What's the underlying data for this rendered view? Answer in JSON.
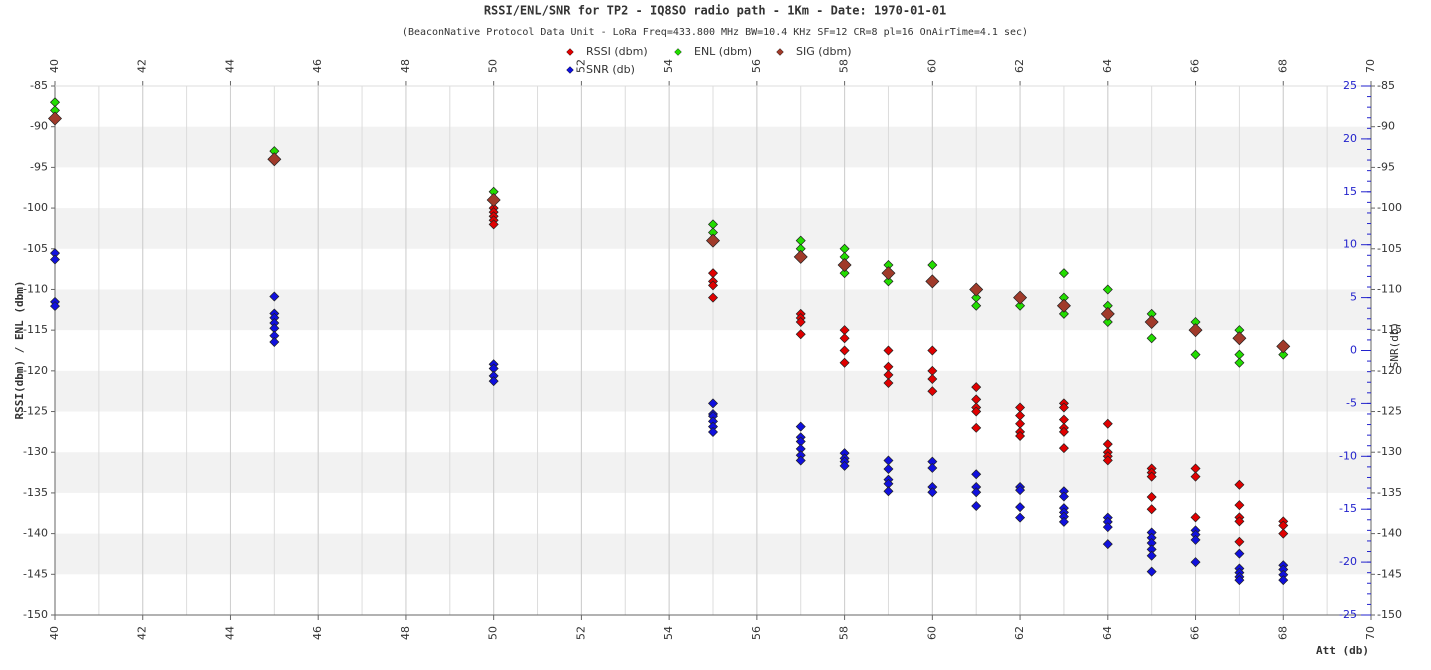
{
  "chart_data": {
    "type": "scatter",
    "title": "RSSI/ENL/SNR for TP2 - IQ8SO radio path - 1Km - Date: 1970-01-01",
    "subtitle": "(BeaconNative Protocol Data Unit - LoRa Freq=433.800 MHz BW=10.4 KHz SF=12 CR=8 pl=16 OnAirTime=4.1 sec)",
    "x_label": "Att (db)",
    "y_label": "RSSI(dbm) / ENL (dbm)",
    "y2_label": "SNR(db)",
    "xlim": [
      40,
      70
    ],
    "xticks": [
      40,
      42,
      44,
      46,
      48,
      50,
      52,
      54,
      56,
      58,
      60,
      62,
      64,
      66,
      68,
      70
    ],
    "ylim": [
      -150,
      -85
    ],
    "yticks": [
      -85,
      -90,
      -95,
      -100,
      -105,
      -110,
      -115,
      -120,
      -125,
      -130,
      -135,
      -140,
      -145,
      -150
    ],
    "y2lim": [
      -25,
      25
    ],
    "y2ticks": [
      25,
      20,
      15,
      10,
      5,
      0,
      -5,
      -10,
      -15,
      -20,
      -25
    ],
    "series": [
      {
        "name": "RSSI (dbm)",
        "color": "#e00000",
        "x": [
          40,
          45,
          50,
          50,
          50,
          50,
          50,
          55,
          55,
          55,
          55,
          57,
          57,
          57,
          57,
          58,
          58,
          58,
          58,
          59,
          59,
          59,
          59,
          60,
          60,
          60,
          60,
          61,
          61,
          61,
          61,
          61,
          62,
          62,
          62,
          62,
          62,
          63,
          63,
          63,
          63,
          63,
          63,
          64,
          64,
          64,
          64,
          64,
          65,
          65,
          65,
          65,
          65,
          66,
          66,
          66,
          67,
          67,
          67,
          67,
          67,
          68,
          68,
          68
        ],
        "values": [
          -89,
          -94,
          -100,
          -100.5,
          -101,
          -101.5,
          -102,
          -108,
          -109,
          -109.5,
          -111,
          -113,
          -113.5,
          -114,
          -115.5,
          -115,
          -116,
          -117.5,
          -119,
          -117.5,
          -119.5,
          -120.5,
          -121.5,
          -117.5,
          -120,
          -121,
          -122.5,
          -122,
          -123.5,
          -124.5,
          -125,
          -127,
          -124.5,
          -125.5,
          -126.5,
          -127.5,
          -128,
          -124,
          -124.5,
          -126,
          -127,
          -127.5,
          -129.5,
          -126.5,
          -129,
          -130,
          -130.5,
          -131,
          -132,
          -132.5,
          -133,
          -135.5,
          -137,
          -132,
          -133,
          -138,
          -134,
          -136.5,
          -138,
          -138.5,
          -141,
          -138.5,
          -139,
          -140
        ]
      },
      {
        "name": "ENL (dbm)",
        "color": "#22dd00",
        "x": [
          40,
          40,
          45,
          50,
          50,
          55,
          55,
          57,
          57,
          58,
          58,
          58,
          59,
          59,
          60,
          61,
          61,
          62,
          63,
          63,
          63,
          64,
          64,
          64,
          65,
          65,
          66,
          66,
          67,
          67,
          67,
          68
        ],
        "values": [
          -87,
          -88,
          -93,
          -98,
          -99,
          -102,
          -103,
          -104,
          -105,
          -105,
          -106,
          -108,
          -107,
          -109,
          -107,
          -111,
          -112,
          -112,
          -108,
          -111,
          -113,
          -110,
          -112,
          -114,
          -113,
          -116,
          -114,
          -118,
          -115,
          -118,
          -119,
          -118
        ]
      },
      {
        "name": "SIG (dbm)",
        "color": "#a03a2a",
        "x": [
          40,
          45,
          50,
          55,
          57,
          58,
          59,
          60,
          61,
          62,
          63,
          64,
          65,
          66,
          67,
          68
        ],
        "values": [
          -89,
          -94,
          -99,
          -104,
          -106,
          -107,
          -108,
          -109,
          -110,
          -111,
          -112,
          -113,
          -114,
          -115,
          -116,
          -117
        ]
      },
      {
        "name": "SNR (db)",
        "color": "#1010dd",
        "axis": "y2",
        "x": [
          40,
          40,
          40,
          40,
          45,
          45,
          45,
          45,
          45,
          45,
          45,
          50,
          50,
          50,
          50,
          55,
          55,
          55,
          55,
          55,
          55,
          57,
          57,
          57,
          57,
          57,
          57,
          58,
          58,
          58,
          58,
          59,
          59,
          59,
          59,
          59,
          60,
          60,
          60,
          60,
          61,
          61,
          61,
          61,
          62,
          62,
          62,
          62,
          63,
          63,
          63,
          63,
          63,
          63,
          64,
          64,
          64,
          64,
          65,
          65,
          65,
          65,
          65,
          65,
          66,
          66,
          66,
          66,
          67,
          67,
          67,
          67,
          67,
          68,
          68,
          68,
          68
        ],
        "values": [
          9.2,
          8.6,
          4.6,
          4.2,
          5.1,
          3.5,
          3.1,
          2.6,
          2.1,
          1.4,
          0.8,
          -1.3,
          -1.7,
          -2.4,
          -2.9,
          -5,
          -6,
          -6.2,
          -6.7,
          -7.2,
          -7.7,
          -7.2,
          -8.2,
          -8.6,
          -9.3,
          -9.9,
          -10.4,
          -9.7,
          -10.2,
          -10.5,
          -10.9,
          -10.4,
          -11.2,
          -12.2,
          -12.6,
          -13.3,
          -10.5,
          -11.1,
          -12.9,
          -13.4,
          -11.7,
          -12.9,
          -13.4,
          -14.7,
          -12.9,
          -13.2,
          -14.8,
          -15.8,
          -13.3,
          -13.8,
          -14.9,
          -15.3,
          -15.7,
          -16.2,
          -15.8,
          -16.2,
          -16.7,
          -18.3,
          -17.2,
          -17.7,
          -18.2,
          -18.8,
          -19.4,
          -20.9,
          -17,
          -17.4,
          -17.9,
          -20,
          -19.2,
          -20.6,
          -21,
          -21.4,
          -21.7,
          -20.3,
          -20.7,
          -21.2,
          -21.7
        ]
      }
    ]
  }
}
